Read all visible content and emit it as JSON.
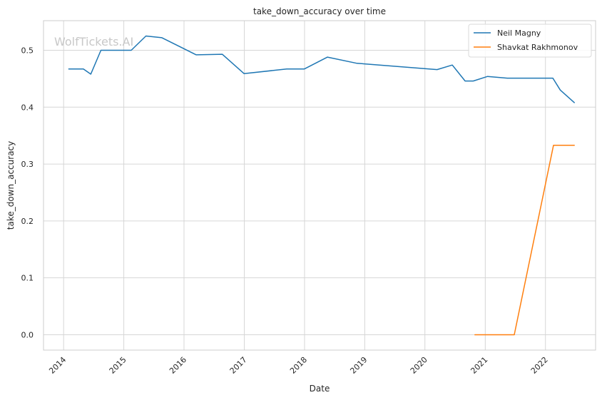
{
  "chart_data": {
    "type": "line",
    "title": "take_down_accuracy over time",
    "xlabel": "Date",
    "ylabel": "take_down_accuracy",
    "watermark": "WolfTickets.AI",
    "xlim": [
      "2013-09-01",
      "2022-11-01"
    ],
    "ylim": [
      -0.027,
      0.552
    ],
    "x_ticks": [
      "2014",
      "2015",
      "2016",
      "2017",
      "2018",
      "2019",
      "2020",
      "2021",
      "2022"
    ],
    "y_ticks": [
      "0.0",
      "0.1",
      "0.2",
      "0.3",
      "0.4",
      "0.5"
    ],
    "grid": true,
    "legend_position": "top-right",
    "series": [
      {
        "name": "Neil Magny",
        "color": "#1f77b4",
        "points": [
          [
            "2014-02-01",
            0.467
          ],
          [
            "2014-05-01",
            0.467
          ],
          [
            "2014-06-15",
            0.458
          ],
          [
            "2014-08-15",
            0.5
          ],
          [
            "2015-02-15",
            0.5
          ],
          [
            "2015-05-15",
            0.525
          ],
          [
            "2015-08-20",
            0.522
          ],
          [
            "2016-03-15",
            0.492
          ],
          [
            "2016-08-20",
            0.493
          ],
          [
            "2016-12-30",
            0.459
          ],
          [
            "2017-09-15",
            0.467
          ],
          [
            "2017-12-30",
            0.467
          ],
          [
            "2018-05-20",
            0.488
          ],
          [
            "2018-11-15",
            0.477
          ],
          [
            "2019-01-01",
            0.476
          ],
          [
            "2020-03-15",
            0.466
          ],
          [
            "2020-06-15",
            0.474
          ],
          [
            "2020-09-01",
            0.446
          ],
          [
            "2020-10-20",
            0.446
          ],
          [
            "2021-01-15",
            0.454
          ],
          [
            "2021-05-15",
            0.451
          ],
          [
            "2022-01-15",
            0.451
          ],
          [
            "2022-02-15",
            0.451
          ],
          [
            "2022-04-01",
            0.43
          ],
          [
            "2022-06-25",
            0.408
          ]
        ]
      },
      {
        "name": "Shavkat Rakhmonov",
        "color": "#ff7f0e",
        "points": [
          [
            "2020-10-30",
            0.0
          ],
          [
            "2021-06-26",
            0.0
          ],
          [
            "2022-02-19",
            0.333
          ],
          [
            "2022-06-25",
            0.333
          ]
        ]
      }
    ]
  }
}
